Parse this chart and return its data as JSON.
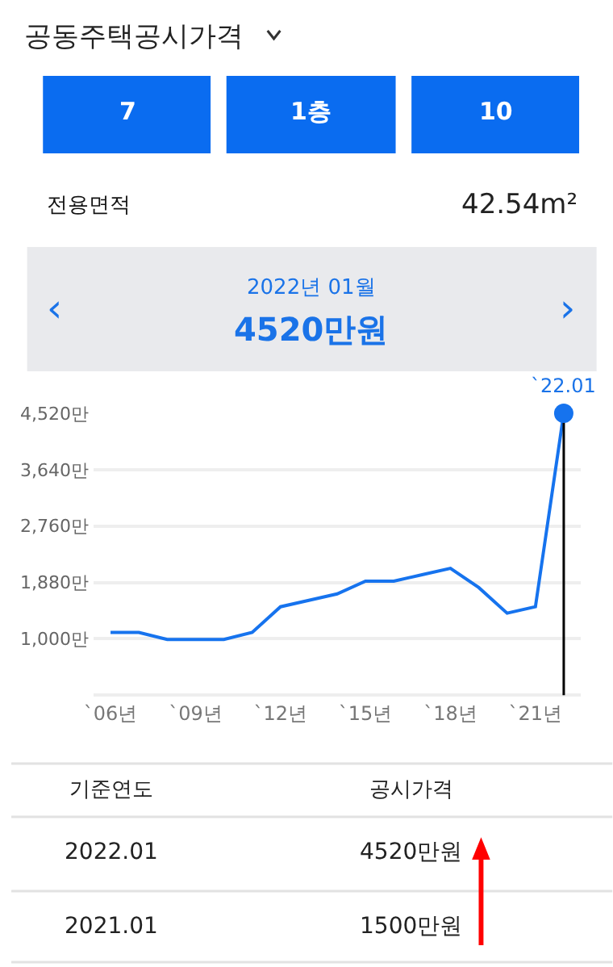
{
  "chart_data": {
    "type": "line",
    "title": "공동주택공시가격",
    "categories": [
      "`06년",
      null,
      null,
      "`09년",
      null,
      null,
      "`12년",
      null,
      null,
      "`15년",
      null,
      null,
      "`18년",
      null,
      null,
      "`21년",
      null
    ],
    "series": [
      {
        "color": "#1673ee",
        "marker": "none",
        "values": [
          1100,
          1100,
          990,
          990,
          990,
          1100,
          1500,
          1600,
          1700,
          1900,
          1900,
          2000,
          2100,
          1800,
          1400,
          1500,
          4520
        ]
      },
      {
        "type": "scatter",
        "color": "#1673ee",
        "marker": "circle",
        "values": [
          null,
          null,
          null,
          null,
          null,
          null,
          null,
          null,
          null,
          null,
          null,
          null,
          null,
          null,
          null,
          null,
          4520
        ],
        "errors": [
          null,
          null,
          null,
          null,
          null,
          null,
          null,
          null,
          null,
          null,
          null,
          null,
          null,
          null,
          null,
          null,
          [
            120,
            4520
          ]
        ]
      }
    ],
    "ylim": [
      60,
      4520
    ],
    "yticks": [
      {
        "value": 120,
        "label": null
      },
      {
        "value": 1000,
        "label": "1,000만"
      },
      {
        "value": 1880,
        "label": "1,880만"
      },
      {
        "value": 2760,
        "label": "2,760만"
      },
      {
        "value": 3640,
        "label": "3,640만"
      },
      {
        "value": 4520,
        "label": "4,520만"
      }
    ],
    "grid": "y",
    "annotations": [
      "7",
      "1층",
      "10",
      "전용면적",
      "42.54m²",
      "2022년 01월",
      "4520만원",
      "‹",
      "›",
      "기준연도",
      "공시가격",
      "2022.01",
      "4520만원",
      "2021.01",
      "1500만원",
      {
        "text": "`22.01",
        "y": 4520
      }
    ]
  }
}
